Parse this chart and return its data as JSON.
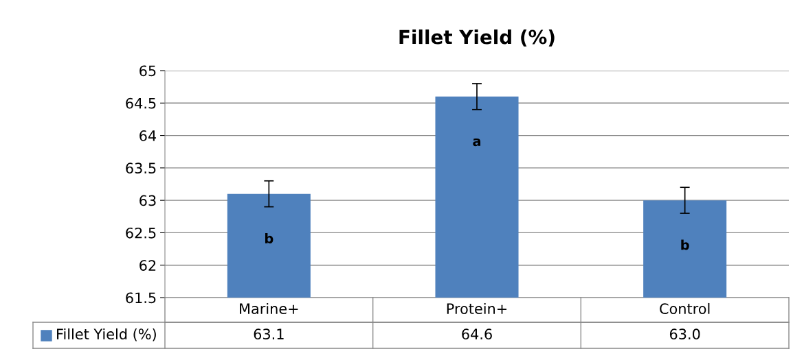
{
  "chart_data": {
    "type": "bar",
    "title": "Fillet Yield (%)",
    "categories": [
      "Marine+",
      "Protein+",
      "Control"
    ],
    "series": [
      {
        "name": "Fillet Yield (%)",
        "color": "#4f81bd",
        "values": [
          63.1,
          64.6,
          63.0
        ],
        "value_labels": [
          "63.1",
          "64.6",
          "63.0"
        ],
        "errors": [
          0.2,
          0.2,
          0.2
        ]
      }
    ],
    "ylim": [
      61.5,
      65
    ],
    "yticks": [
      61.5,
      62,
      62.5,
      63,
      63.5,
      64,
      64.5,
      65
    ],
    "grid": "y",
    "legend": "bottom",
    "annotations": [
      "b",
      "a",
      "b"
    ]
  }
}
